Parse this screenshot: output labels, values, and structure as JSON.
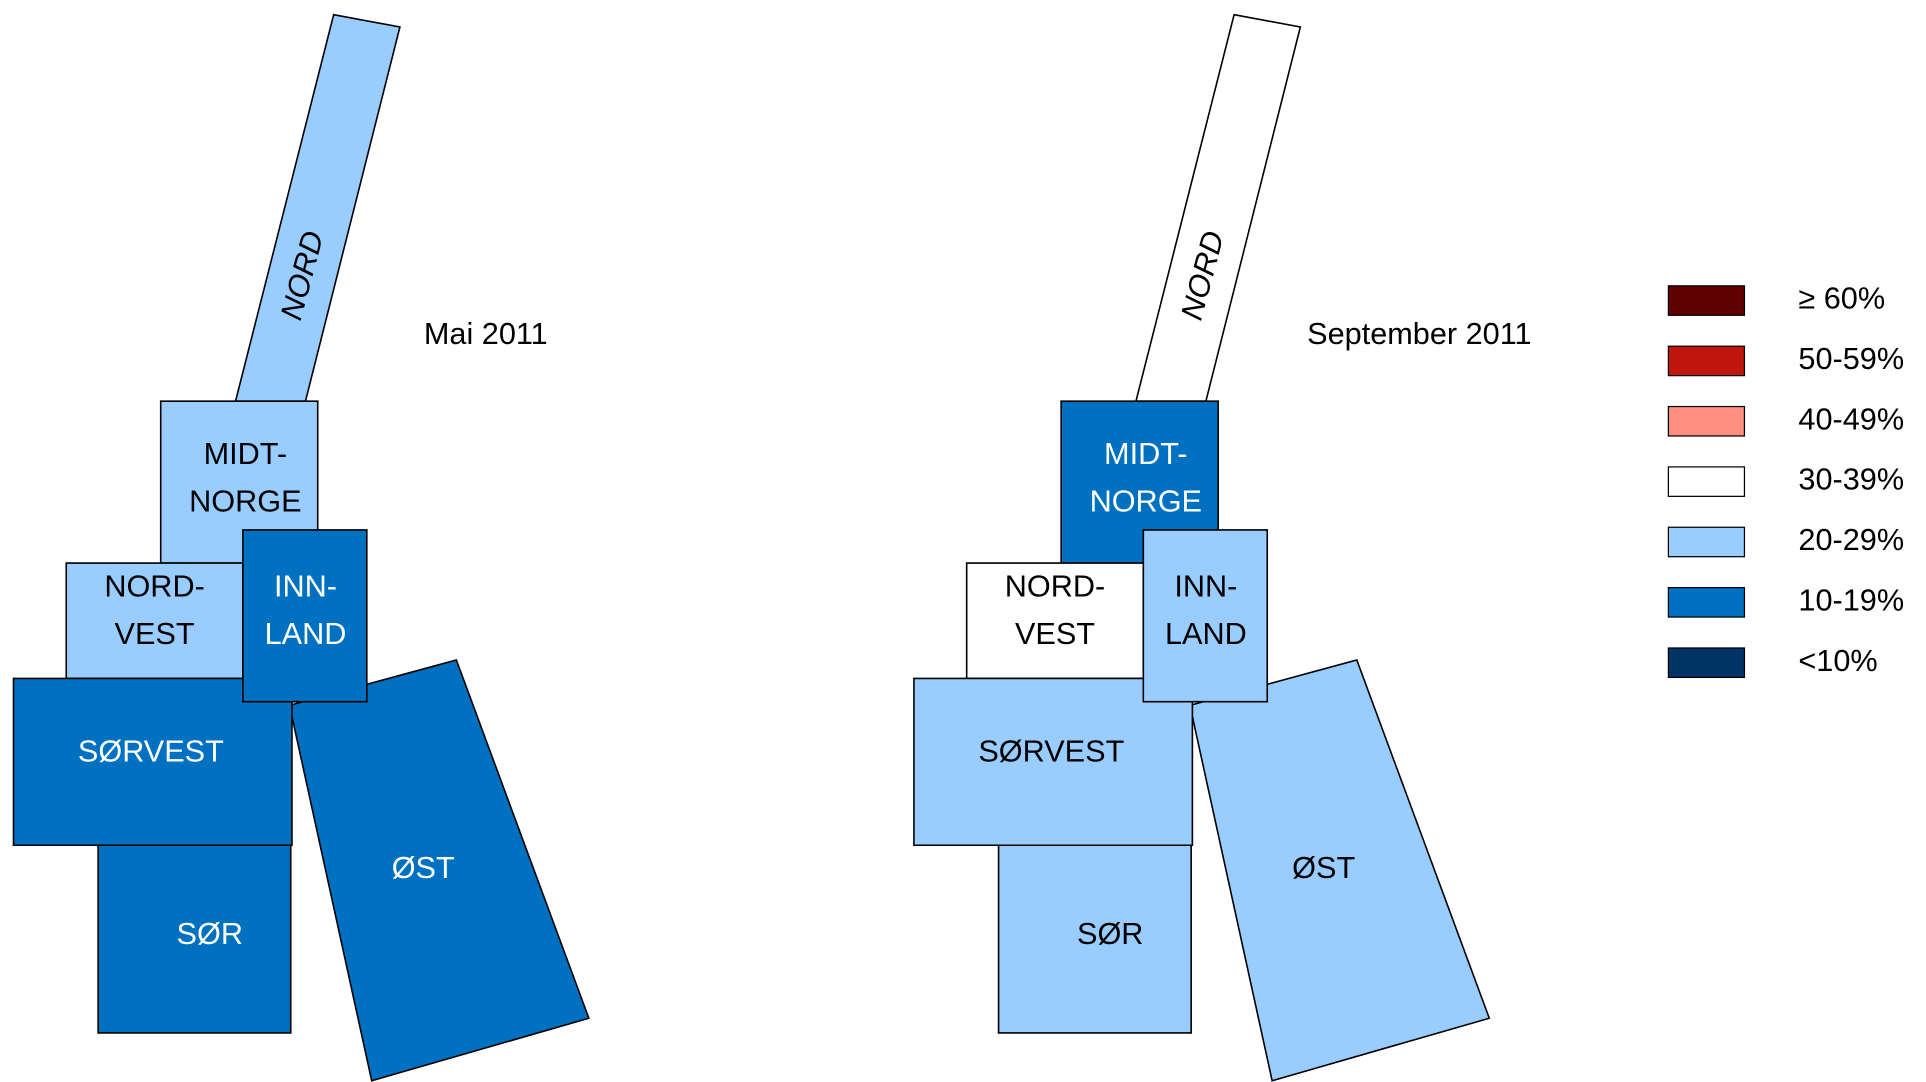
{
  "maps": [
    {
      "title": "Mai 2011",
      "regions": [
        {
          "lines": [
            "NORD"
          ],
          "fill": "#99ccff"
        },
        {
          "lines": [
            "MIDT-",
            "NORGE"
          ],
          "fill": "#99ccff"
        },
        {
          "lines": [
            "NORD-",
            "VEST"
          ],
          "fill": "#99ccff"
        },
        {
          "lines": [
            "ØST"
          ],
          "fill": "#0070c0"
        },
        {
          "lines": [
            "SØRVEST"
          ],
          "fill": "#0070c0"
        },
        {
          "lines": [
            "SØR"
          ],
          "fill": "#0070c0"
        },
        {
          "lines": [
            "INN-",
            "LAND"
          ],
          "fill": "#0070c0"
        }
      ]
    },
    {
      "title": "September 2011",
      "regions": [
        {
          "lines": [
            "NORD"
          ],
          "fill": "#ffffff"
        },
        {
          "lines": [
            "MIDT-",
            "NORGE"
          ],
          "fill": "#0070c0"
        },
        {
          "lines": [
            "NORD-",
            "VEST"
          ],
          "fill": "#ffffff"
        },
        {
          "lines": [
            "ØST"
          ],
          "fill": "#99ccff"
        },
        {
          "lines": [
            "SØRVEST"
          ],
          "fill": "#99ccff"
        },
        {
          "lines": [
            "SØR"
          ],
          "fill": "#99ccff"
        },
        {
          "lines": [
            "INN-",
            "LAND"
          ],
          "fill": "#99ccff"
        }
      ]
    }
  ],
  "legend": [
    {
      "label": "≥ 60%",
      "color": "#600000"
    },
    {
      "label": "50-59%",
      "color": "#c0150a"
    },
    {
      "label": "40-49%",
      "color": "#ff8f80"
    },
    {
      "label": "30-39%",
      "color": "#ffffff"
    },
    {
      "label": "20-29%",
      "color": "#99ccff"
    },
    {
      "label": "10-19%",
      "color": "#0070c0"
    },
    {
      "label": "<10%",
      "color": "#003366"
    }
  ]
}
